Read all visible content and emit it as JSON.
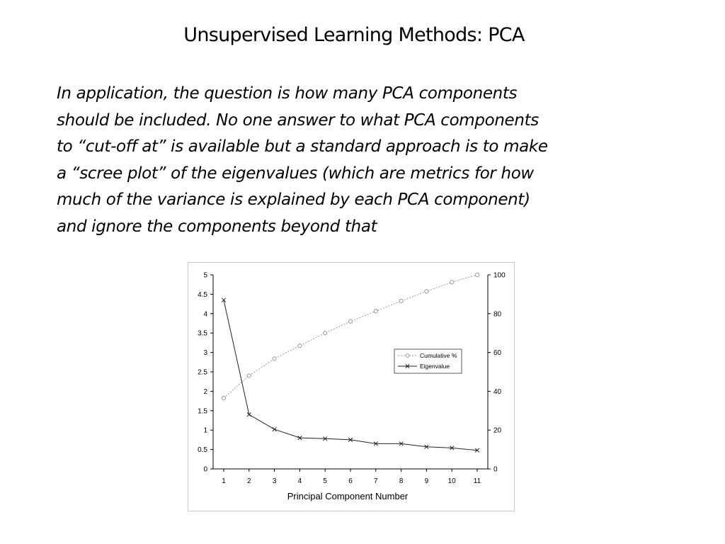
{
  "slide": {
    "title": "Unsupervised Learning Methods: PCA",
    "body_lines": [
      "In application, the question is how many PCA components",
      "should be included.  No one answer to what PCA components",
      "to “cut-off at” is available but a standard approach is to make",
      "a “scree plot” of the eigenvalues (which are metrics for how",
      "much of the variance is explained by each PCA component)",
      "and ignore  the components beyond that"
    ]
  },
  "chart_data": {
    "type": "line",
    "title": "",
    "xlabel": "Principal Component Number",
    "ylabel": "",
    "y2label": "",
    "x": [
      1,
      2,
      3,
      4,
      5,
      6,
      7,
      8,
      9,
      10,
      11
    ],
    "ylim": [
      0,
      5
    ],
    "y_ticks": [
      "0",
      "0.5",
      "1",
      "1.5",
      "2",
      "2.5",
      "3",
      "3.5",
      "4",
      "4.5",
      "5"
    ],
    "y2lim": [
      0,
      100
    ],
    "y2_ticks": [
      "0",
      "20",
      "40",
      "60",
      "80",
      "100"
    ],
    "grid": false,
    "legend_position": "right",
    "series": [
      {
        "name": "Cumulative %",
        "axis": "right",
        "marker": "circle",
        "line_style": "dotted",
        "color": "#9a9a9a",
        "values": [
          36.5,
          48,
          56.8,
          63.5,
          70,
          76,
          81.3,
          86.5,
          91.5,
          96.2,
          100
        ]
      },
      {
        "name": "Eigenvalue",
        "axis": "left",
        "marker": "x",
        "line_style": "solid",
        "color": "#222222",
        "values": [
          4.35,
          1.4,
          1.02,
          0.8,
          0.78,
          0.75,
          0.65,
          0.65,
          0.57,
          0.54,
          0.48
        ]
      }
    ]
  }
}
